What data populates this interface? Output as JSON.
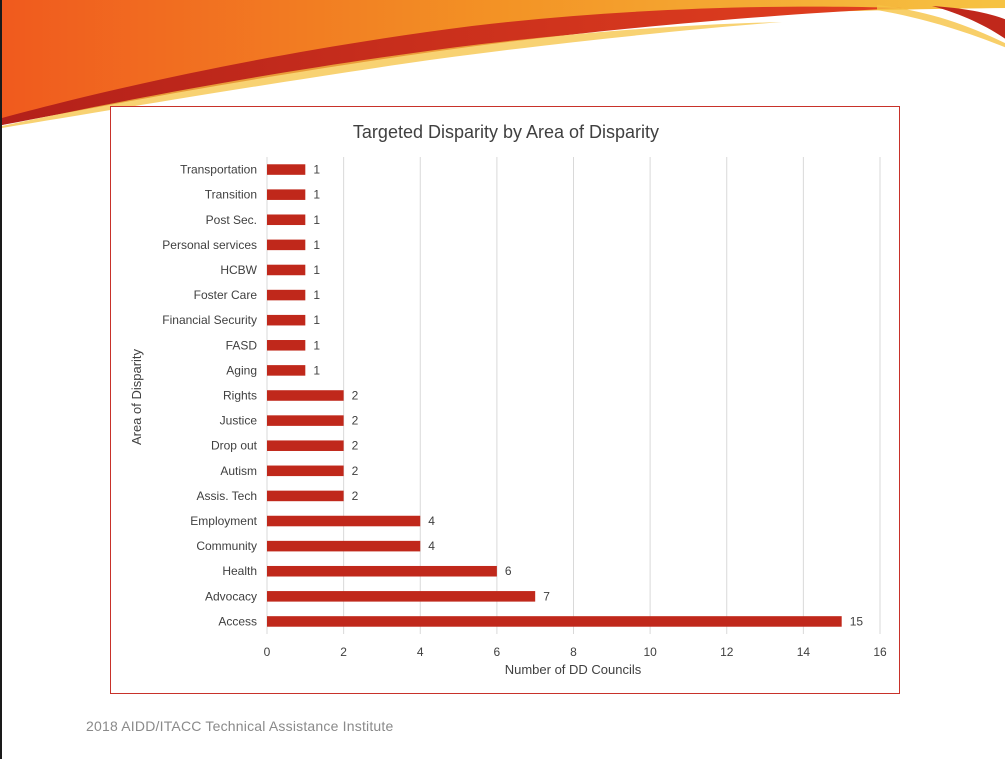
{
  "slide": {
    "footer": "2018 AIDD/ITACC  Technical Assistance Institute"
  },
  "colors": {
    "bar": "#c0281b",
    "frame": "#c8322a",
    "grid": "#d9d9d9",
    "text": "#404040",
    "swoosh_red": "#c0281b",
    "swoosh_orange": "#f08a24",
    "swoosh_yellow": "#f6c343"
  },
  "chart_data": {
    "type": "bar",
    "orientation": "horizontal",
    "title": "Targeted Disparity by Area of Disparity",
    "xlabel": "Number of DD Councils",
    "ylabel": "Area of Disparity",
    "xlim": [
      0,
      16
    ],
    "xticks": [
      0,
      2,
      4,
      6,
      8,
      10,
      12,
      14,
      16
    ],
    "grid": true,
    "legend": "none",
    "categories": [
      "Transportation",
      "Transition",
      "Post Sec.",
      "Personal services",
      "HCBW",
      "Foster Care",
      "Financial Security",
      "FASD",
      "Aging",
      "Rights",
      "Justice",
      "Drop out",
      "Autism",
      "Assis. Tech",
      "Employment",
      "Community",
      "Health",
      "Advocacy",
      "Access"
    ],
    "values": [
      1,
      1,
      1,
      1,
      1,
      1,
      1,
      1,
      1,
      2,
      2,
      2,
      2,
      2,
      4,
      4,
      6,
      7,
      15
    ],
    "data_labels": [
      "1",
      "1",
      "1",
      "1",
      "1",
      "1",
      "1",
      "1",
      "1",
      "2",
      "2",
      "2",
      "2",
      "2",
      "4",
      "4",
      "6",
      "7",
      "15"
    ]
  }
}
